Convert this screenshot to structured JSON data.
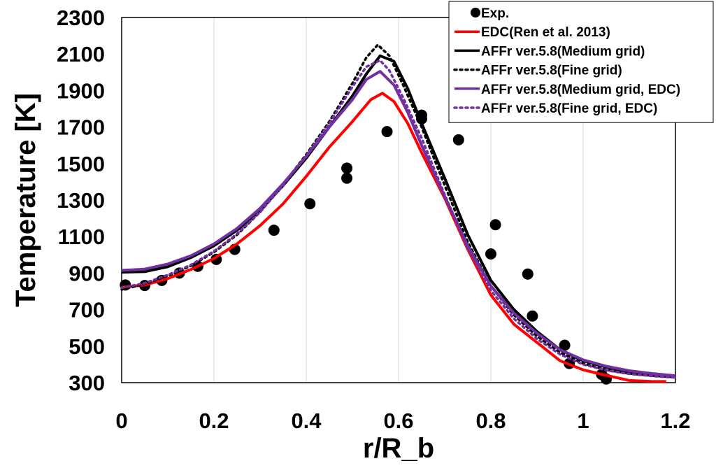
{
  "chart_data": {
    "type": "line",
    "xlabel": "r/R_b",
    "ylabel": "Temperature [K]",
    "xlim": [
      0,
      1.2
    ],
    "ylim": [
      300,
      2300
    ],
    "xticks": [
      0,
      0.2,
      0.4,
      0.6,
      0.8,
      1,
      1.2
    ],
    "xtick_labels": [
      "0",
      "0.2",
      "0.4",
      "0.6",
      "0.8",
      "1",
      "1.2"
    ],
    "yticks": [
      300,
      500,
      700,
      900,
      1100,
      1300,
      1500,
      1700,
      1900,
      2100,
      2300
    ],
    "ytick_labels": [
      "300",
      "500",
      "700",
      "900",
      "1100",
      "1300",
      "1500",
      "1700",
      "1900",
      "2100",
      "2300"
    ],
    "grid": "vertical",
    "legend_position": "top-right",
    "series": [
      {
        "name": "Exp.",
        "kind": "scatter",
        "color": "#000000",
        "x": [
          0.008,
          0.05,
          0.087,
          0.125,
          0.165,
          0.205,
          0.245,
          0.33,
          0.408,
          0.488,
          0.488,
          0.575,
          0.65,
          0.65,
          0.73,
          0.8,
          0.81,
          0.88,
          0.89,
          0.96,
          0.97,
          1.04,
          1.05
        ],
        "y": [
          835,
          832,
          860,
          900,
          937,
          975,
          1030,
          1135,
          1280,
          1475,
          1420,
          1675,
          1765,
          1745,
          1630,
          1005,
          1165,
          895,
          665,
          505,
          405,
          345,
          320
        ]
      },
      {
        "name": "EDC(Ren et al. 2013)",
        "kind": "line",
        "style": "solid",
        "color": "#ff0000",
        "x": [
          0.0,
          0.05,
          0.1,
          0.15,
          0.2,
          0.25,
          0.3,
          0.35,
          0.4,
          0.45,
          0.5,
          0.54,
          0.565,
          0.59,
          0.62,
          0.65,
          0.7,
          0.75,
          0.8,
          0.85,
          0.9,
          0.95,
          1.0,
          1.05,
          1.1,
          1.15,
          1.18
        ],
        "y": [
          822,
          835,
          870,
          920,
          980,
          1060,
          1160,
          1280,
          1430,
          1590,
          1730,
          1850,
          1885,
          1840,
          1720,
          1560,
          1310,
          1030,
          780,
          620,
          520,
          420,
          370,
          340,
          312,
          306,
          306
        ]
      },
      {
        "name": "AFFr ver.5.8(Medium grid)",
        "kind": "line",
        "style": "solid",
        "color": "#000000",
        "x": [
          0.0,
          0.05,
          0.1,
          0.15,
          0.2,
          0.25,
          0.3,
          0.35,
          0.4,
          0.45,
          0.5,
          0.53,
          0.56,
          0.59,
          0.62,
          0.65,
          0.7,
          0.75,
          0.8,
          0.85,
          0.9,
          0.95,
          1.0,
          1.05,
          1.1,
          1.15,
          1.2
        ],
        "y": [
          905,
          908,
          935,
          985,
          1050,
          1135,
          1245,
          1380,
          1530,
          1700,
          1870,
          1990,
          2090,
          2060,
          1910,
          1720,
          1420,
          1110,
          860,
          700,
          580,
          480,
          420,
          385,
          360,
          342,
          333
        ]
      },
      {
        "name": "AFFr ver.5.8(Fine grid)",
        "kind": "line",
        "style": "dotted",
        "color": "#000000",
        "x": [
          0.0,
          0.05,
          0.1,
          0.15,
          0.2,
          0.25,
          0.3,
          0.35,
          0.4,
          0.45,
          0.5,
          0.53,
          0.555,
          0.58,
          0.61,
          0.65,
          0.7,
          0.75,
          0.8,
          0.85,
          0.9,
          0.95,
          1.0,
          1.05,
          1.1,
          1.15,
          1.2
        ],
        "y": [
          810,
          840,
          885,
          940,
          1015,
          1110,
          1235,
          1385,
          1550,
          1730,
          1940,
          2080,
          2150,
          2090,
          1930,
          1700,
          1380,
          1070,
          830,
          670,
          555,
          465,
          405,
          370,
          350,
          338,
          330
        ]
      },
      {
        "name": "AFFr ver.5.8(Medium grid, EDC)",
        "kind": "line",
        "style": "solid",
        "color": "#7030a0",
        "x": [
          0.0,
          0.05,
          0.1,
          0.15,
          0.2,
          0.25,
          0.3,
          0.35,
          0.4,
          0.45,
          0.5,
          0.53,
          0.56,
          0.59,
          0.62,
          0.65,
          0.7,
          0.75,
          0.8,
          0.85,
          0.9,
          0.95,
          1.0,
          1.05,
          1.1,
          1.15,
          1.2
        ],
        "y": [
          915,
          922,
          950,
          995,
          1060,
          1145,
          1255,
          1390,
          1540,
          1700,
          1850,
          1960,
          2005,
          1930,
          1780,
          1600,
          1320,
          1050,
          830,
          680,
          570,
          480,
          425,
          390,
          365,
          350,
          338
        ]
      },
      {
        "name": "AFFr ver.5.8(Fine grid, EDC)",
        "kind": "line",
        "style": "dotted",
        "color": "#7030a0",
        "x": [
          0.0,
          0.05,
          0.1,
          0.15,
          0.2,
          0.25,
          0.3,
          0.35,
          0.4,
          0.45,
          0.5,
          0.53,
          0.56,
          0.58,
          0.61,
          0.65,
          0.7,
          0.75,
          0.8,
          0.85,
          0.9,
          0.95,
          1.0,
          1.05,
          1.1,
          1.15,
          1.2
        ],
        "y": [
          820,
          845,
          890,
          945,
          1020,
          1115,
          1235,
          1380,
          1545,
          1720,
          1920,
          2030,
          2065,
          2010,
          1860,
          1640,
          1330,
          1035,
          805,
          650,
          540,
          455,
          400,
          368,
          348,
          336,
          328
        ]
      }
    ]
  }
}
